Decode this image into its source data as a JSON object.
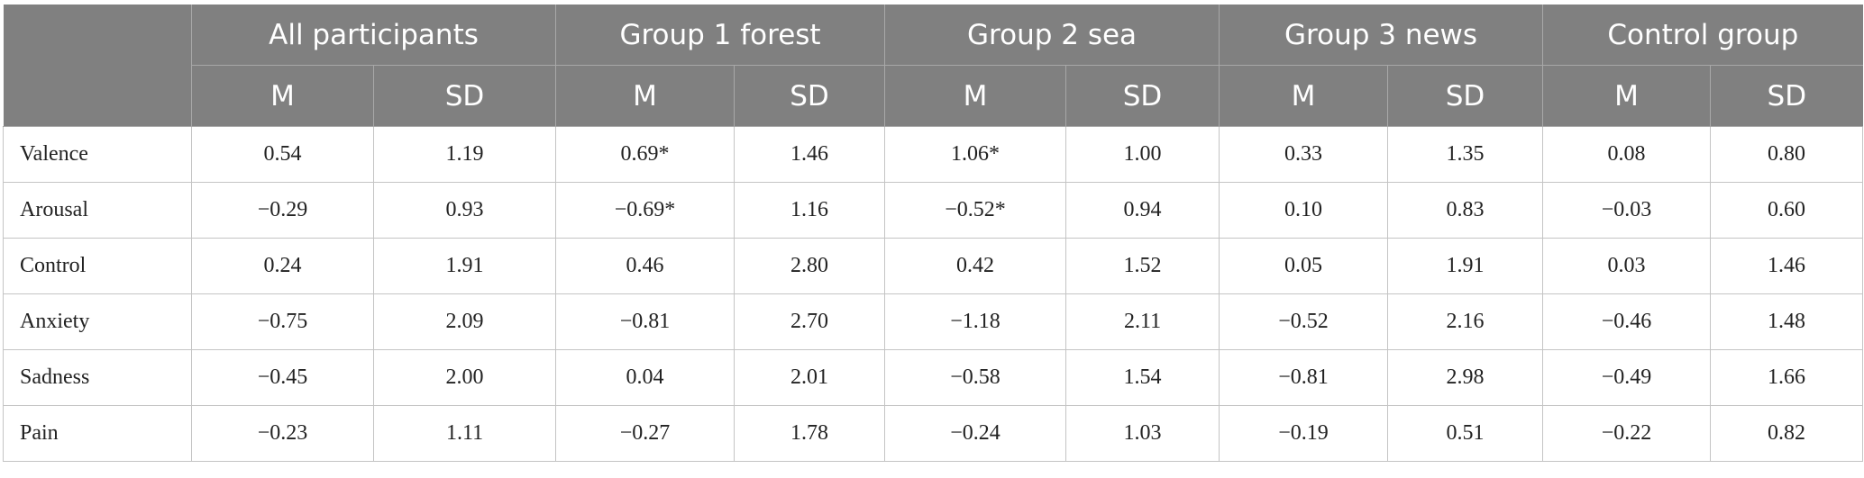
{
  "table": {
    "groups": [
      {
        "name": "All participants",
        "stats": [
          "M",
          "SD"
        ]
      },
      {
        "name": "Group 1 forest",
        "stats": [
          "M",
          "SD"
        ]
      },
      {
        "name": "Group 2 sea",
        "stats": [
          "M",
          "SD"
        ]
      },
      {
        "name": "Group 3 news",
        "stats": [
          "M",
          "SD"
        ]
      },
      {
        "name": "Control group",
        "stats": [
          "M",
          "SD"
        ]
      }
    ],
    "rows": [
      {
        "label": "Valence",
        "cells": [
          "0.54",
          "1.19",
          "0.69*",
          "1.46",
          "1.06*",
          "1.00",
          "0.33",
          "1.35",
          "0.08",
          "0.80"
        ]
      },
      {
        "label": "Arousal",
        "cells": [
          "−0.29",
          "0.93",
          "−0.69*",
          "1.16",
          "−0.52*",
          "0.94",
          "0.10",
          "0.83",
          "−0.03",
          "0.60"
        ]
      },
      {
        "label": "Control",
        "cells": [
          "0.24",
          "1.91",
          "0.46",
          "2.80",
          "0.42",
          "1.52",
          "0.05",
          "1.91",
          "0.03",
          "1.46"
        ]
      },
      {
        "label": "Anxiety",
        "cells": [
          "−0.75",
          "2.09",
          "−0.81",
          "2.70",
          "−1.18",
          "2.11",
          "−0.52",
          "2.16",
          "−0.46",
          "1.48"
        ]
      },
      {
        "label": "Sadness",
        "cells": [
          "−0.45",
          "2.00",
          "0.04",
          "2.01",
          "−0.58",
          "1.54",
          "−0.81",
          "2.98",
          "−0.49",
          "1.66"
        ]
      },
      {
        "label": "Pain",
        "cells": [
          "−0.23",
          "1.11",
          "−0.27",
          "1.78",
          "−0.24",
          "1.03",
          "−0.19",
          "0.51",
          "−0.22",
          "0.82"
        ]
      }
    ]
  }
}
